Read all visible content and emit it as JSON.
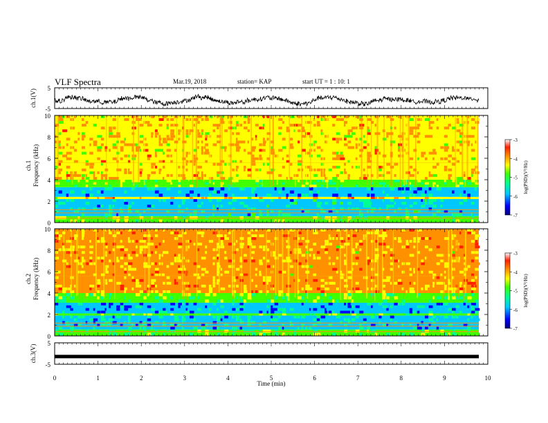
{
  "header": {
    "title": "VLF Spectra",
    "date": "Mar.19, 2018",
    "station": "station= KAP",
    "start_ut": "start  UT =   1 : 10: 1"
  },
  "colors": {
    "spectrogram_scale": [
      "#000080",
      "#0000ff",
      "#00c8ff",
      "#00ff90",
      "#40ff00",
      "#ffff00",
      "#ff9000",
      "#ff2000",
      "#ffffff"
    ]
  },
  "chart_data": [
    {
      "type": "line",
      "panel": "ch1-waveform",
      "ylabel": "ch.1(V)",
      "ylim": [
        -5,
        5
      ],
      "yticks": [
        "5",
        "-5"
      ],
      "xlim": [
        0,
        10
      ],
      "series": [
        {
          "values_description_free": true,
          "mean": -1.0,
          "amplitude_range": [
            -3,
            2
          ]
        }
      ]
    },
    {
      "type": "heatmap",
      "panel": "ch1-spectrogram",
      "ylabel_top": "ch.1",
      "ylabel": "Frequency (kHz)",
      "ylim": [
        0,
        10
      ],
      "yticks": [
        "0",
        "2",
        "4",
        "6",
        "8",
        "10"
      ],
      "xlim": [
        0,
        10
      ],
      "colorbar": {
        "label": "log(PSD)(V²/Hz)",
        "range": [
          -7,
          -3
        ],
        "ticks": [
          "-3",
          "-4",
          "-5",
          "-6",
          "-7"
        ]
      },
      "bands": [
        {
          "from_khz": 0.0,
          "to_khz": 0.6,
          "level": -4.3
        },
        {
          "from_khz": 0.6,
          "to_khz": 2.2,
          "level": -5.3
        },
        {
          "from_khz": 2.2,
          "to_khz": 2.4,
          "level": -3.6
        },
        {
          "from_khz": 2.4,
          "to_khz": 3.3,
          "level": -5.6
        },
        {
          "from_khz": 3.3,
          "to_khz": 4.0,
          "level": -4.4
        },
        {
          "from_khz": 4.0,
          "to_khz": 10.0,
          "level": -3.6
        }
      ]
    },
    {
      "type": "heatmap",
      "panel": "ch2-spectrogram",
      "ylabel_top": "ch.2",
      "ylabel": "Frequency (kHz)",
      "ylim": [
        0,
        10
      ],
      "yticks": [
        "0",
        "2",
        "4",
        "6",
        "8",
        "10"
      ],
      "xlim": [
        0,
        10
      ],
      "colorbar": {
        "label": "log(PSD)(V²/Hz)",
        "range": [
          -7,
          -3
        ],
        "ticks": [
          "-3",
          "-4",
          "-5",
          "-6",
          "-7"
        ]
      },
      "bands": [
        {
          "from_khz": 0.0,
          "to_khz": 0.6,
          "level": -4.6
        },
        {
          "from_khz": 0.6,
          "to_khz": 1.9,
          "level": -5.4
        },
        {
          "from_khz": 1.9,
          "to_khz": 2.1,
          "level": -4.2
        },
        {
          "from_khz": 2.1,
          "to_khz": 3.1,
          "level": -5.7
        },
        {
          "from_khz": 3.1,
          "to_khz": 4.0,
          "level": -4.5
        },
        {
          "from_khz": 4.0,
          "to_khz": 10.0,
          "level": -3.5
        }
      ]
    },
    {
      "type": "line",
      "panel": "ch3-waveform",
      "ylabel": "ch.3(V)",
      "ylim": [
        -5,
        5
      ],
      "yticks": [
        "5",
        "-5"
      ],
      "xlim": [
        0,
        10
      ],
      "series": [
        {
          "constant": -1.4
        }
      ]
    }
  ],
  "xaxis": {
    "label": "Time (min)",
    "ticks": [
      "0",
      "1",
      "2",
      "3",
      "4",
      "5",
      "6",
      "7",
      "8",
      "9",
      "10"
    ]
  }
}
